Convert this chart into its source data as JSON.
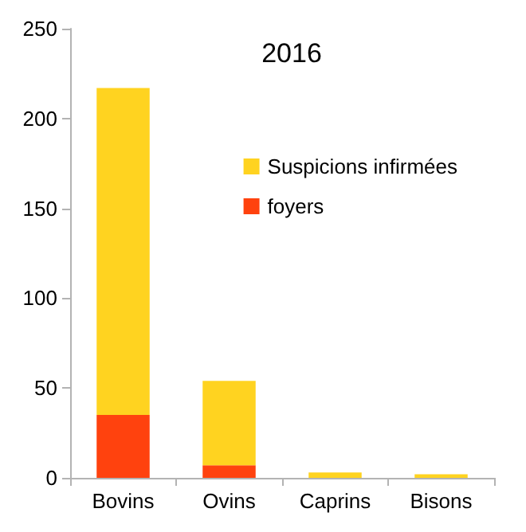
{
  "chart_data": {
    "type": "bar",
    "title": "2016",
    "stacked": true,
    "categories": [
      "Bovins",
      "Ovins",
      "Caprins",
      "Bisons"
    ],
    "series": [
      {
        "name": "foyers",
        "color": "#ff420e",
        "values": [
          35,
          7,
          0,
          0
        ]
      },
      {
        "name": "Suspicions infirmées",
        "color": "#ffd320",
        "values": [
          182,
          47,
          3,
          2
        ]
      }
    ],
    "ylim": [
      0,
      250
    ],
    "yticks": [
      0,
      50,
      100,
      150,
      200,
      250
    ],
    "grid": false,
    "legend": "top right"
  }
}
